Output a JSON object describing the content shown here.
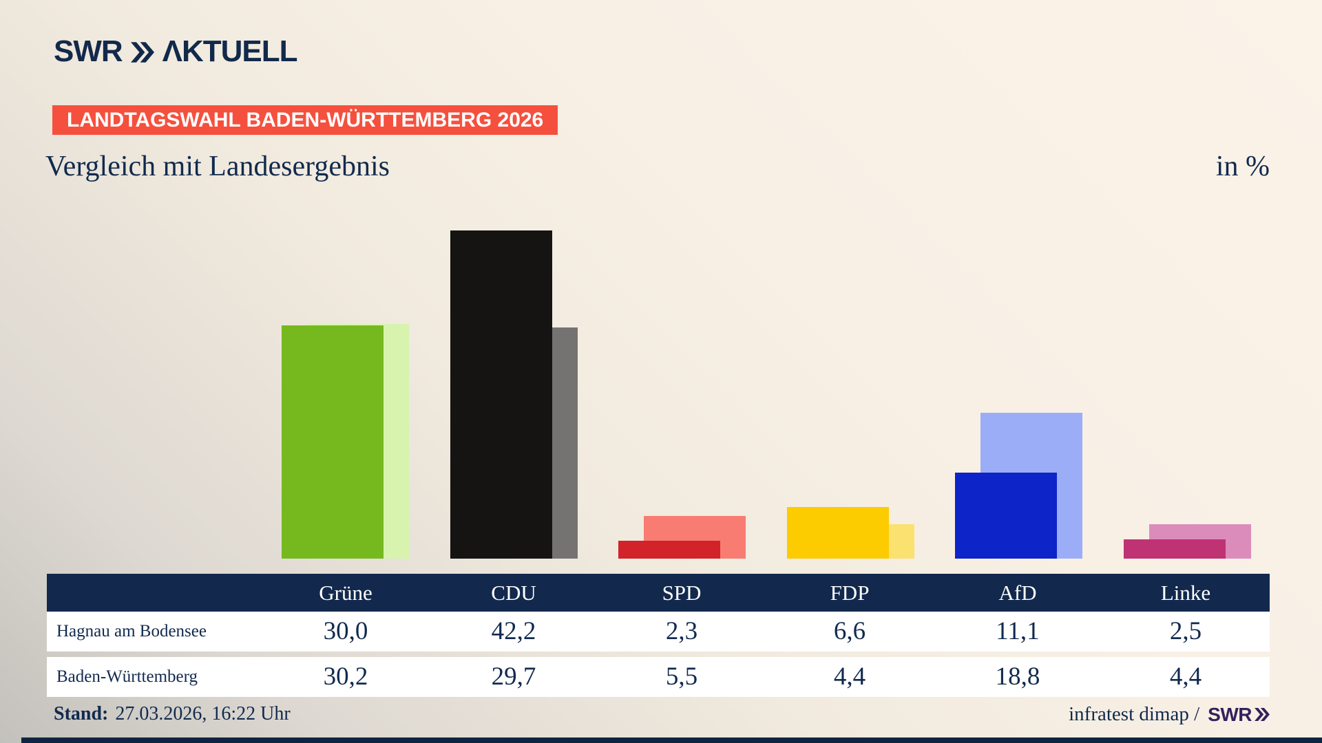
{
  "brand": {
    "logo_swr": "SWR",
    "logo_product": "ΛKTUELL"
  },
  "badge": {
    "text": "LANDTAGSWAHL BADEN-WÜRTTEMBERG 2026"
  },
  "title": "Vergleich mit Landesergebnis",
  "unit_label": "in %",
  "chart_data": {
    "type": "bar",
    "categories": [
      "Grüne",
      "CDU",
      "SPD",
      "FDP",
      "AfD",
      "Linke"
    ],
    "series": [
      {
        "name": "Hagnau am Bodensee",
        "values": [
          30.0,
          42.2,
          2.3,
          6.6,
          11.1,
          2.5
        ],
        "colors": [
          "#76b91f",
          "#151413",
          "#d2222a",
          "#fccb00",
          "#0c24c8",
          "#bf3274"
        ]
      },
      {
        "name": "Baden-Württemberg",
        "values": [
          30.2,
          29.7,
          5.5,
          4.4,
          18.8,
          4.4
        ],
        "colors": [
          "#d7f3ae",
          "#757371",
          "#f97c72",
          "#fbe170",
          "#9cadf8",
          "#dc8cba"
        ]
      }
    ],
    "title": "Vergleich mit Landesergebnis",
    "xlabel": "",
    "ylabel": "in %",
    "ylim": [
      0,
      45
    ],
    "grid": false,
    "legend_position": "table-below"
  },
  "table": {
    "headers": [
      "Grüne",
      "CDU",
      "SPD",
      "FDP",
      "AfD",
      "Linke"
    ],
    "rows": [
      {
        "label": "Hagnau am Bodensee",
        "values": [
          "30,0",
          "42,2",
          "2,3",
          "6,6",
          "11,1",
          "2,5"
        ]
      },
      {
        "label": "Baden-Württemberg",
        "values": [
          "30,2",
          "29,7",
          "5,5",
          "4,4",
          "18,8",
          "4,4"
        ]
      }
    ]
  },
  "footer": {
    "stand_label": "Stand:",
    "stand_value": "27.03.2026, 16:22 Uhr",
    "credit": "infratest dimap /",
    "credit_brand": "SWR"
  },
  "colors": {
    "navy": "#11294b",
    "table_header_bg": "#12294d",
    "badge_bg": "#f5503e",
    "credit_brand": "#35205c",
    "bottom_strip": "#0f2441",
    "background_light": "#fbf3e8",
    "background_dark": "#c3c1bc"
  }
}
